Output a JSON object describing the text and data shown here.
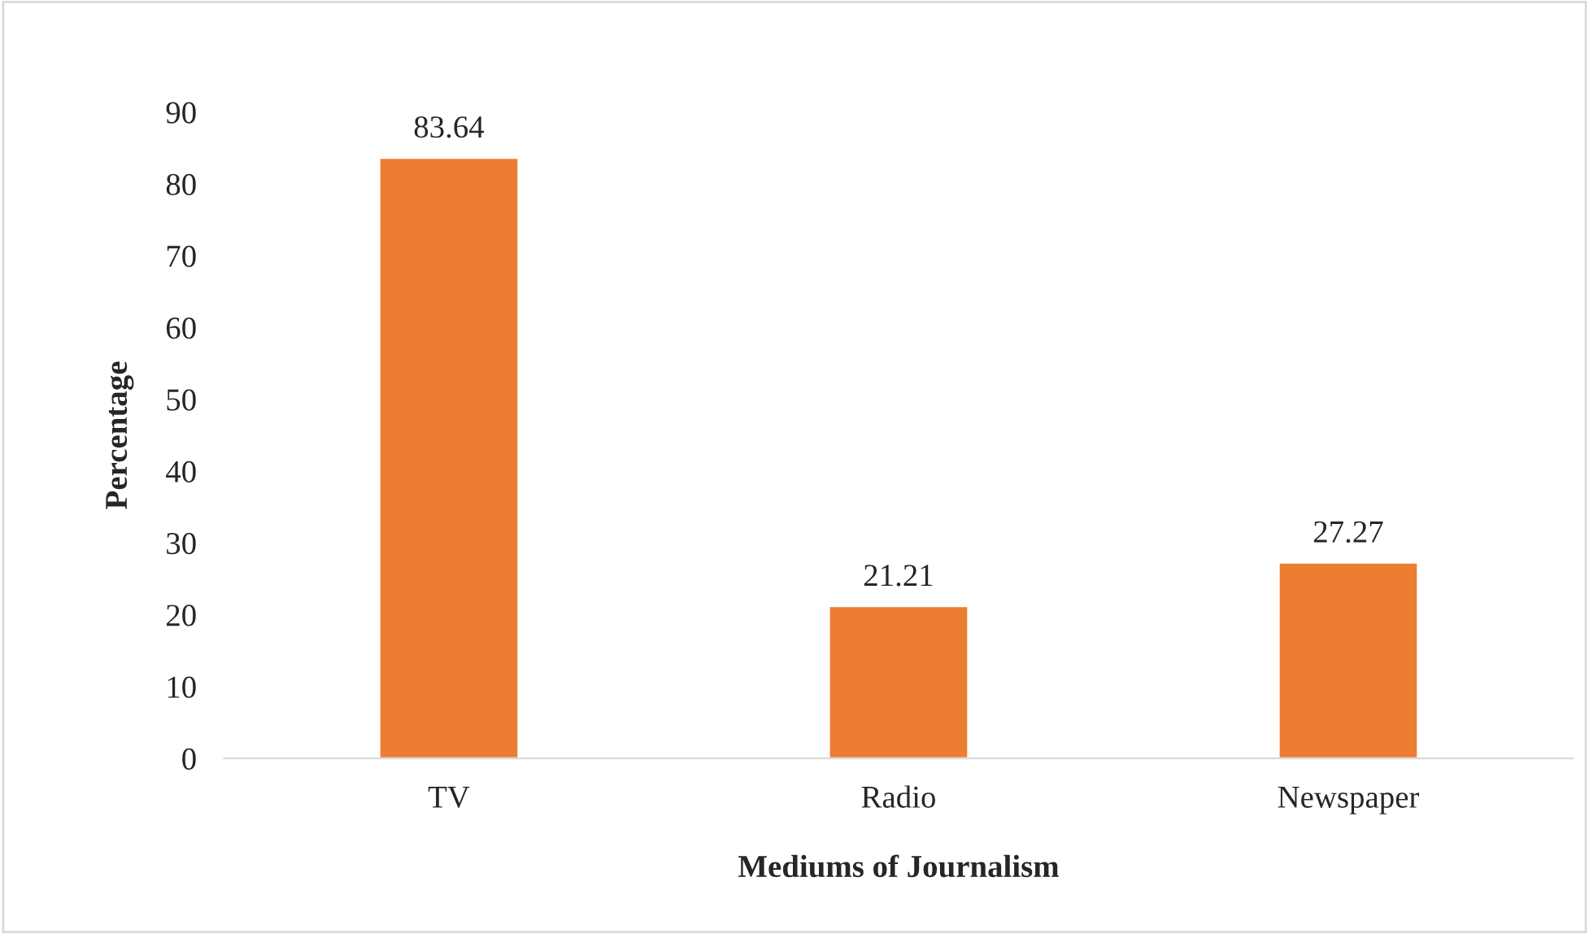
{
  "chart_data": {
    "type": "bar",
    "xlabel": "Mediums of Journalism",
    "ylabel": "Percentage",
    "categories": [
      "TV",
      "Radio",
      "Newspaper"
    ],
    "values": [
      83.64,
      21.21,
      27.27
    ],
    "color": "#ed7d31",
    "ylim": [
      0,
      90
    ],
    "yticks": [
      0,
      10,
      20,
      30,
      40,
      50,
      60,
      70,
      80,
      90
    ],
    "data_labels": true,
    "grid": false
  }
}
